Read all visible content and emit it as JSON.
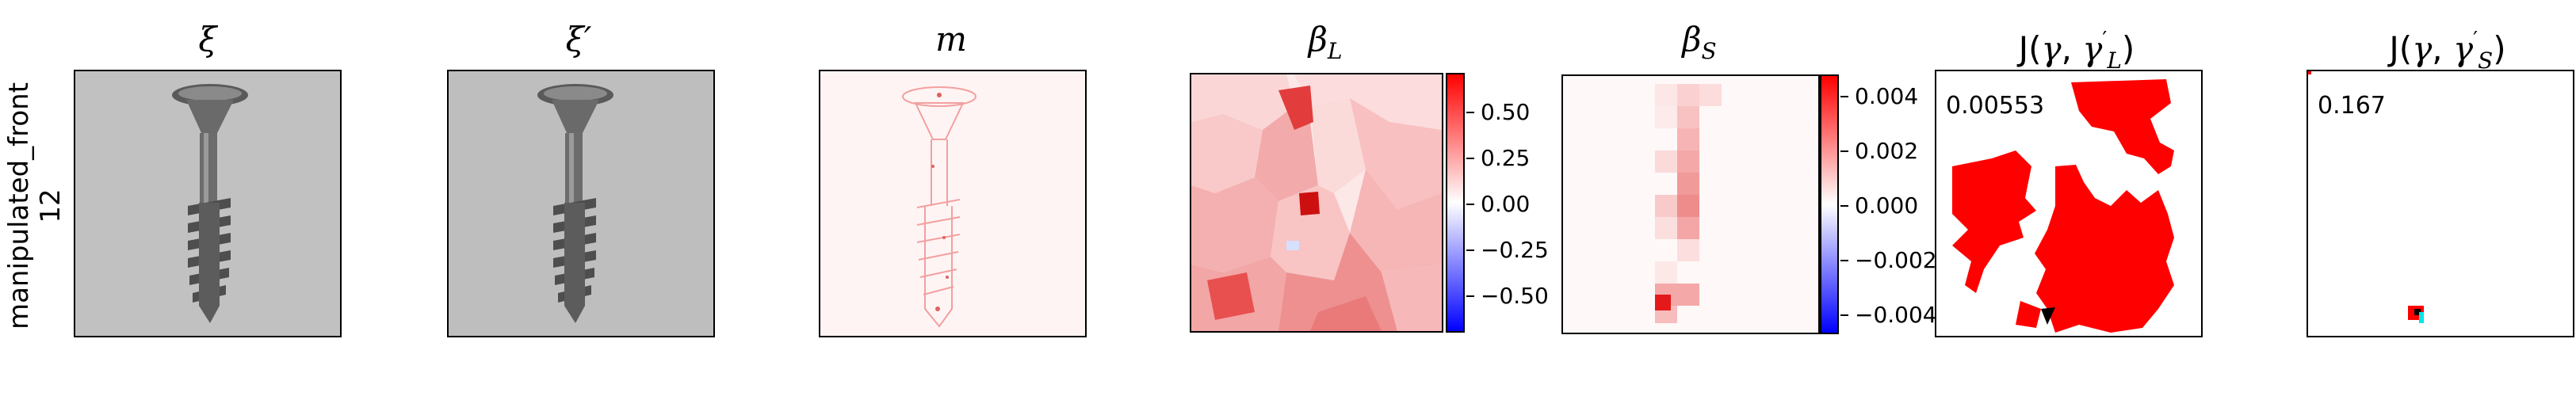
{
  "row_label": "manipulated_front\n12",
  "row_label_lines": [
    "manipulated_front",
    "12"
  ],
  "panels": [
    {
      "title": "ξ",
      "kind": "photo"
    },
    {
      "title": "ξ′",
      "kind": "photo"
    },
    {
      "title": "m",
      "kind": "mask"
    },
    {
      "title_main": "β",
      "title_sub": "L",
      "kind": "heatmap-superpixel"
    },
    {
      "title_main": "β",
      "title_sub": "S",
      "kind": "heatmap-grid"
    },
    {
      "title_prefix": "J(",
      "title_g": "γ",
      "title_sep": ", ",
      "title_g2": "γ",
      "title_sup": "′",
      "title_sub": "L",
      "title_suffix": ")",
      "annotation": "0.00553",
      "kind": "segmentation"
    },
    {
      "title_prefix": "J(",
      "title_g": "γ",
      "title_sep": ", ",
      "title_g2": "γ",
      "title_sup": "′",
      "title_sub": "S",
      "title_suffix": ")",
      "annotation": "0.167",
      "kind": "segmentation-small"
    }
  ],
  "colorbars": [
    {
      "ticks": [
        "0.50",
        "0.25",
        "0.00",
        "−0.25",
        "−0.50"
      ],
      "cmap": "bwr"
    },
    {
      "ticks": [
        "0.004",
        "0.002",
        "0.000",
        "−0.002",
        "−0.004"
      ],
      "cmap": "bwr"
    }
  ],
  "colors": {
    "red": "#ff0000",
    "blue": "#0000ff",
    "photo_bg": "#bcbcbc",
    "cyan": "#00e5e5"
  }
}
